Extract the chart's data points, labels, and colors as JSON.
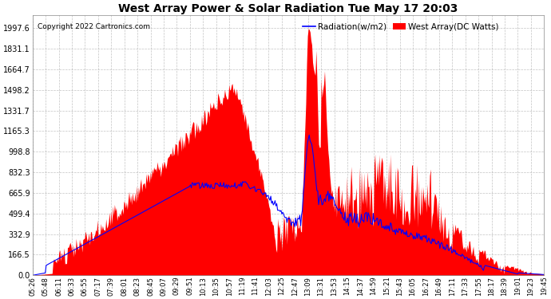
{
  "title": "West Array Power & Solar Radiation Tue May 17 20:03",
  "copyright": "Copyright 2022 Cartronics.com",
  "legend_radiation": "Radiation(w/m2)",
  "legend_west_array": "West Array(DC Watts)",
  "radiation_color": "blue",
  "west_array_color": "red",
  "y_ticks": [
    0.0,
    166.5,
    332.9,
    499.4,
    665.9,
    832.3,
    998.8,
    1165.3,
    1331.7,
    1498.2,
    1664.7,
    1831.1,
    1997.6
  ],
  "ymax": 2100,
  "background_color": "#ffffff",
  "grid_color": "#aaaaaa",
  "x_labels": [
    "05:26",
    "05:48",
    "06:11",
    "06:33",
    "06:55",
    "07:17",
    "07:39",
    "08:01",
    "08:23",
    "08:45",
    "09:07",
    "09:29",
    "09:51",
    "10:13",
    "10:35",
    "10:57",
    "11:19",
    "11:41",
    "12:03",
    "12:25",
    "12:47",
    "13:09",
    "13:31",
    "13:53",
    "14:15",
    "14:37",
    "14:59",
    "15:21",
    "15:43",
    "16:05",
    "16:27",
    "16:49",
    "17:11",
    "17:33",
    "17:55",
    "18:17",
    "18:39",
    "19:01",
    "19:23",
    "19:45"
  ]
}
